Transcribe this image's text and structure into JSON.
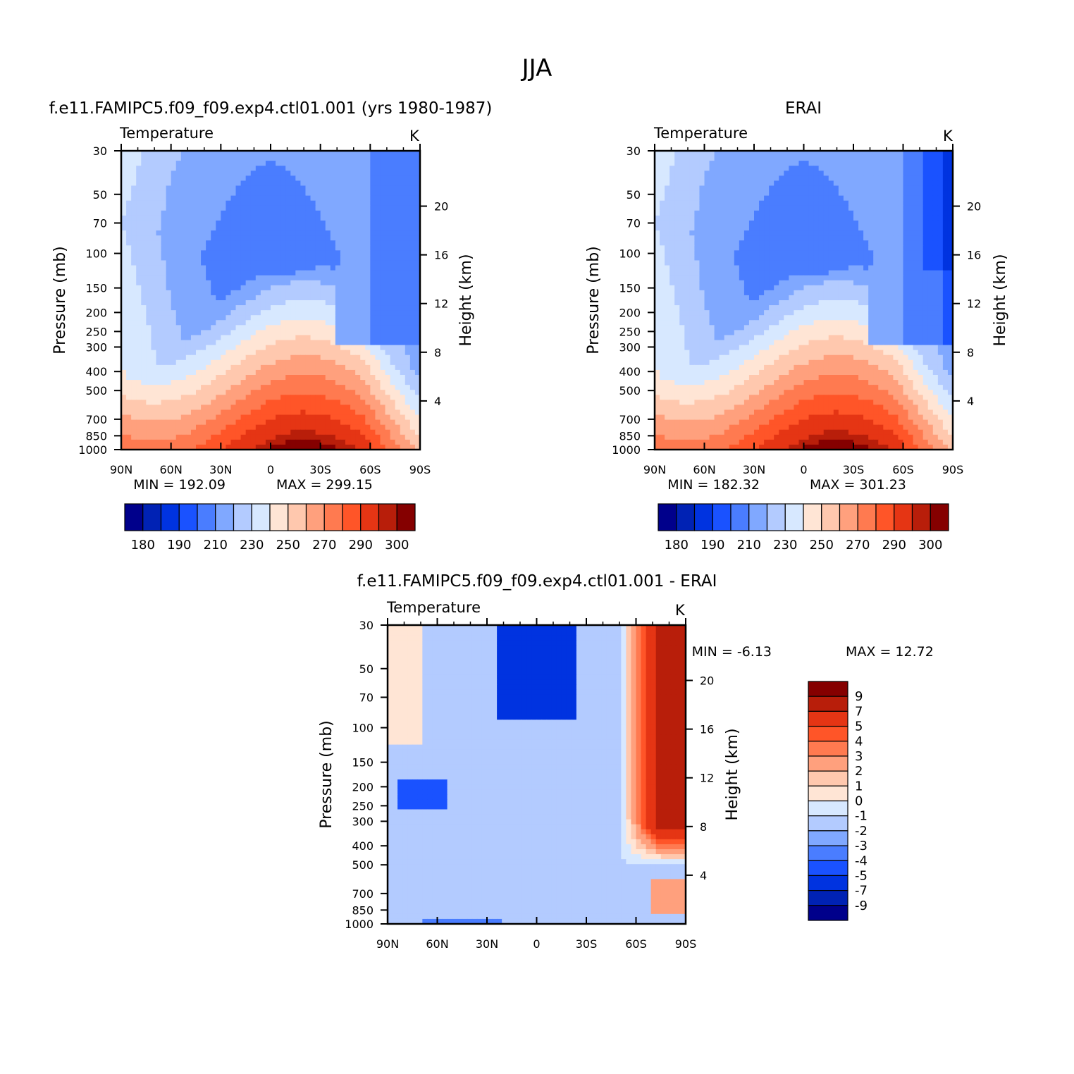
{
  "figure_title": "JJA",
  "colors": {
    "abs_scale": [
      "#00008b",
      "#0022b4",
      "#0033e0",
      "#1a52ff",
      "#4a7dff",
      "#80a8ff",
      "#b3cbff",
      "#d7e8ff",
      "#ffe5d5",
      "#ffc8ae",
      "#ffa07d",
      "#ff7a50",
      "#ff5528",
      "#e53514",
      "#b81e0a",
      "#850000"
    ],
    "diff_scale": [
      "#00008b",
      "#0022b4",
      "#0033e0",
      "#1a52ff",
      "#4a7dff",
      "#80a8ff",
      "#b3cbff",
      "#d7e8ff",
      "#ffe5d5",
      "#ffc8ae",
      "#ffa07d",
      "#ff7a50",
      "#ff5528",
      "#e53514",
      "#b81e0a",
      "#850000"
    ]
  },
  "chart_data": [
    {
      "type": "heatmap",
      "panel_title": "f.e11.FAMIPC5.f09_f09.exp4.ctl01.001 (yrs 1980-1987)",
      "variable_label": "Temperature",
      "units_label": "K",
      "xlabel": "",
      "ylabel": "Pressure (mb)",
      "ylabel_right": "Height (km)",
      "x_ticks": [
        "90N",
        "60N",
        "30N",
        "0",
        "30S",
        "60S",
        "90S"
      ],
      "x_lim": [
        90,
        -90
      ],
      "y_ticks": [
        "30",
        "50",
        "70",
        "100",
        "150",
        "200",
        "250",
        "300",
        "400",
        "500",
        "700",
        "850",
        "1000"
      ],
      "y_tick_values": [
        30,
        50,
        70,
        100,
        150,
        200,
        250,
        300,
        400,
        500,
        700,
        850,
        1000
      ],
      "y_lim": [
        1000,
        30
      ],
      "y_scale": "log",
      "right_ticks": [
        "4",
        "8",
        "12",
        "16",
        "20"
      ],
      "min_label": "MIN = 192.09",
      "max_label": "MAX = 299.15",
      "min": 192.09,
      "max": 299.15,
      "colorbar": {
        "orientation": "horizontal",
        "labels": [
          "180",
          "190",
          "210",
          "230",
          "250",
          "270",
          "290",
          "300"
        ],
        "levels": [
          175,
          180,
          185,
          190,
          200,
          210,
          220,
          230,
          240,
          250,
          260,
          270,
          280,
          290,
          295,
          300
        ]
      }
    },
    {
      "type": "heatmap",
      "panel_title": "ERAI",
      "variable_label": "Temperature",
      "units_label": "K",
      "xlabel": "",
      "ylabel": "Pressure (mb)",
      "ylabel_right": "Height (km)",
      "x_ticks": [
        "90N",
        "60N",
        "30N",
        "0",
        "30S",
        "60S",
        "90S"
      ],
      "x_lim": [
        90,
        -90
      ],
      "y_ticks": [
        "30",
        "50",
        "70",
        "100",
        "150",
        "200",
        "250",
        "300",
        "400",
        "500",
        "700",
        "850",
        "1000"
      ],
      "y_tick_values": [
        30,
        50,
        70,
        100,
        150,
        200,
        250,
        300,
        400,
        500,
        700,
        850,
        1000
      ],
      "y_lim": [
        1000,
        30
      ],
      "y_scale": "log",
      "right_ticks": [
        "4",
        "8",
        "12",
        "16",
        "20"
      ],
      "min_label": "MIN = 182.32",
      "max_label": "MAX = 301.23",
      "min": 182.32,
      "max": 301.23,
      "colorbar": {
        "orientation": "horizontal",
        "labels": [
          "180",
          "190",
          "210",
          "230",
          "250",
          "270",
          "290",
          "300"
        ],
        "levels": [
          175,
          180,
          185,
          190,
          200,
          210,
          220,
          230,
          240,
          250,
          260,
          270,
          280,
          290,
          295,
          300
        ]
      }
    },
    {
      "type": "heatmap",
      "panel_title": "f.e11.FAMIPC5.f09_f09.exp4.ctl01.001 - ERAI",
      "variable_label": "Temperature",
      "units_label": "K",
      "xlabel": "",
      "ylabel": "Pressure (mb)",
      "ylabel_right": "Height (km)",
      "x_ticks": [
        "90N",
        "60N",
        "30N",
        "0",
        "30S",
        "60S",
        "90S"
      ],
      "x_lim": [
        90,
        -90
      ],
      "y_ticks": [
        "30",
        "50",
        "70",
        "100",
        "150",
        "200",
        "250",
        "300",
        "400",
        "500",
        "700",
        "850",
        "1000"
      ],
      "y_tick_values": [
        30,
        50,
        70,
        100,
        150,
        200,
        250,
        300,
        400,
        500,
        700,
        850,
        1000
      ],
      "y_lim": [
        1000,
        30
      ],
      "y_scale": "log",
      "right_ticks": [
        "4",
        "8",
        "12",
        "16",
        "20"
      ],
      "min_label": "MIN = -6.13",
      "max_label": "MAX = 12.72",
      "min": -6.13,
      "max": 12.72,
      "colorbar": {
        "orientation": "vertical",
        "labels": [
          "9",
          "7",
          "5",
          "4",
          "3",
          "2",
          "1",
          "0",
          "-1",
          "-2",
          "-3",
          "-4",
          "-5",
          "-7",
          "-9"
        ],
        "levels": [
          -9,
          -7,
          -5,
          -4,
          -3,
          -2,
          -1,
          0,
          1,
          2,
          3,
          4,
          5,
          7,
          9
        ]
      }
    }
  ]
}
